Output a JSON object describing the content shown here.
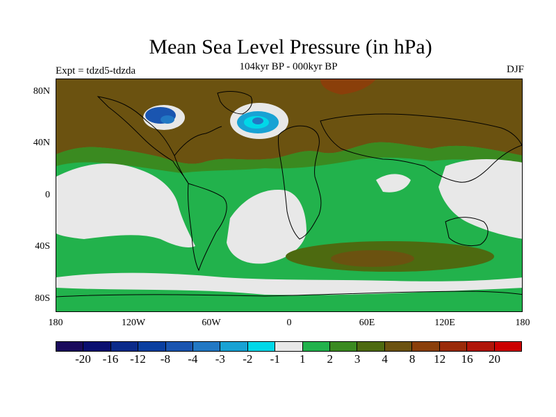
{
  "header": {
    "title": "Mean Sea Level Pressure (in hPa)",
    "subtitle": "104kyr BP - 000kyr BP",
    "left_label": "Expt = tdzd5-tdzda",
    "right_label": "DJF"
  },
  "axes": {
    "y_ticks": [
      "80N",
      "40N",
      "0",
      "40S",
      "80S"
    ],
    "x_ticks": [
      "180",
      "120W",
      "60W",
      "0",
      "60E",
      "120E",
      "180"
    ]
  },
  "colorbar": {
    "colors": [
      "#1a0a5c",
      "#0a0f70",
      "#0a2a8a",
      "#0a3fa0",
      "#1a55b0",
      "#2278c4",
      "#18a2d4",
      "#00d8e8",
      "#e8e8e8",
      "#22b24c",
      "#3a8a20",
      "#4d6a10",
      "#6b5210",
      "#8a3f0a",
      "#9a2a08",
      "#b01508",
      "#cc0000"
    ],
    "labels": [
      "-20",
      "-16",
      "-12",
      "-8",
      "-4",
      "-3",
      "-2",
      "-1",
      "1",
      "2",
      "3",
      "4",
      "8",
      "12",
      "16",
      "20"
    ]
  },
  "legend_colors": {
    "white": "#e8e8e8",
    "green": "#22b24c",
    "darkgreen": "#3a8a20",
    "olive": "#4d6a10",
    "brown": "#6b5210",
    "rust": "#8a3f0a",
    "red": "#9a2a08",
    "lightblue": "#18a2d4",
    "cyan": "#00d8e8",
    "blue": "#1a55b0"
  }
}
